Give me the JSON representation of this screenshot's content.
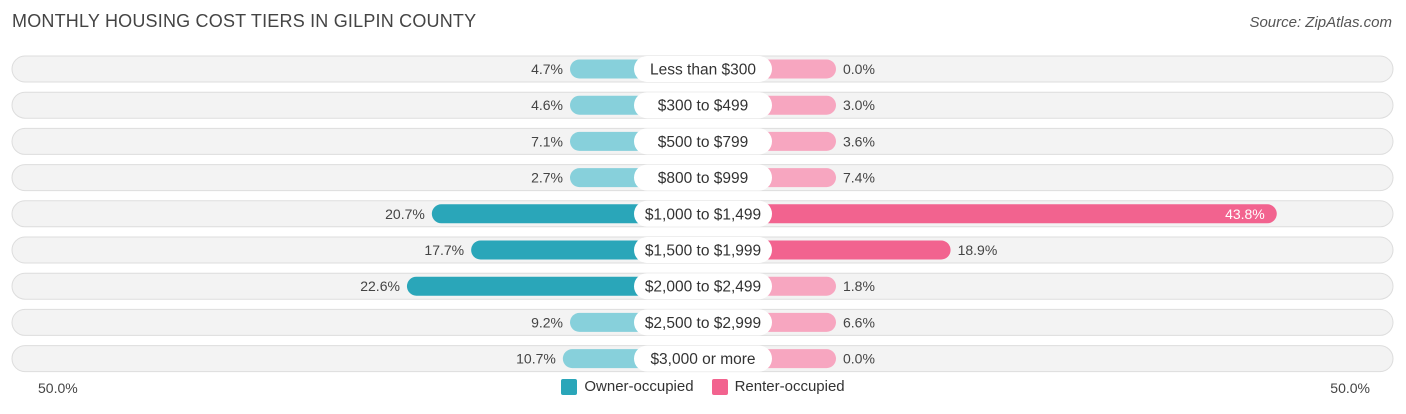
{
  "title": "MONTHLY HOUSING COST TIERS IN GILPIN COUNTY",
  "source": "Source: ZipAtlas.com",
  "colors": {
    "owner": "#2aa6b9",
    "owner_light": "#87d0db",
    "renter": "#f2638f",
    "renter_light": "#f7a6c0"
  },
  "legend": {
    "owner_label": "Owner-occupied",
    "renter_label": "Renter-occupied"
  },
  "axis": {
    "left_label": "50.0%",
    "right_label": "50.0%"
  },
  "chart_data": {
    "type": "bar",
    "orientation": "horizontal-diverging",
    "title": "MONTHLY HOUSING COST TIERS IN GILPIN COUNTY",
    "categories": [
      "Less than $300",
      "$300 to $499",
      "$500 to $799",
      "$800 to $999",
      "$1,000 to $1,499",
      "$1,500 to $1,999",
      "$2,000 to $2,499",
      "$2,500 to $2,999",
      "$3,000 or more"
    ],
    "series": [
      {
        "name": "Owner-occupied",
        "values": [
          4.7,
          4.6,
          7.1,
          2.7,
          20.7,
          17.7,
          22.6,
          9.2,
          10.7
        ],
        "labels": [
          "4.7%",
          "4.6%",
          "7.1%",
          "2.7%",
          "20.7%",
          "17.7%",
          "22.6%",
          "9.2%",
          "10.7%"
        ]
      },
      {
        "name": "Renter-occupied",
        "values": [
          0.0,
          3.0,
          3.6,
          7.4,
          43.8,
          18.9,
          1.8,
          6.6,
          0.0
        ],
        "labels": [
          "0.0%",
          "3.0%",
          "3.6%",
          "7.4%",
          "43.8%",
          "18.9%",
          "1.8%",
          "6.6%",
          "0.0%"
        ]
      }
    ],
    "xlim": [
      -50,
      50
    ],
    "legend_position": "bottom-center"
  }
}
